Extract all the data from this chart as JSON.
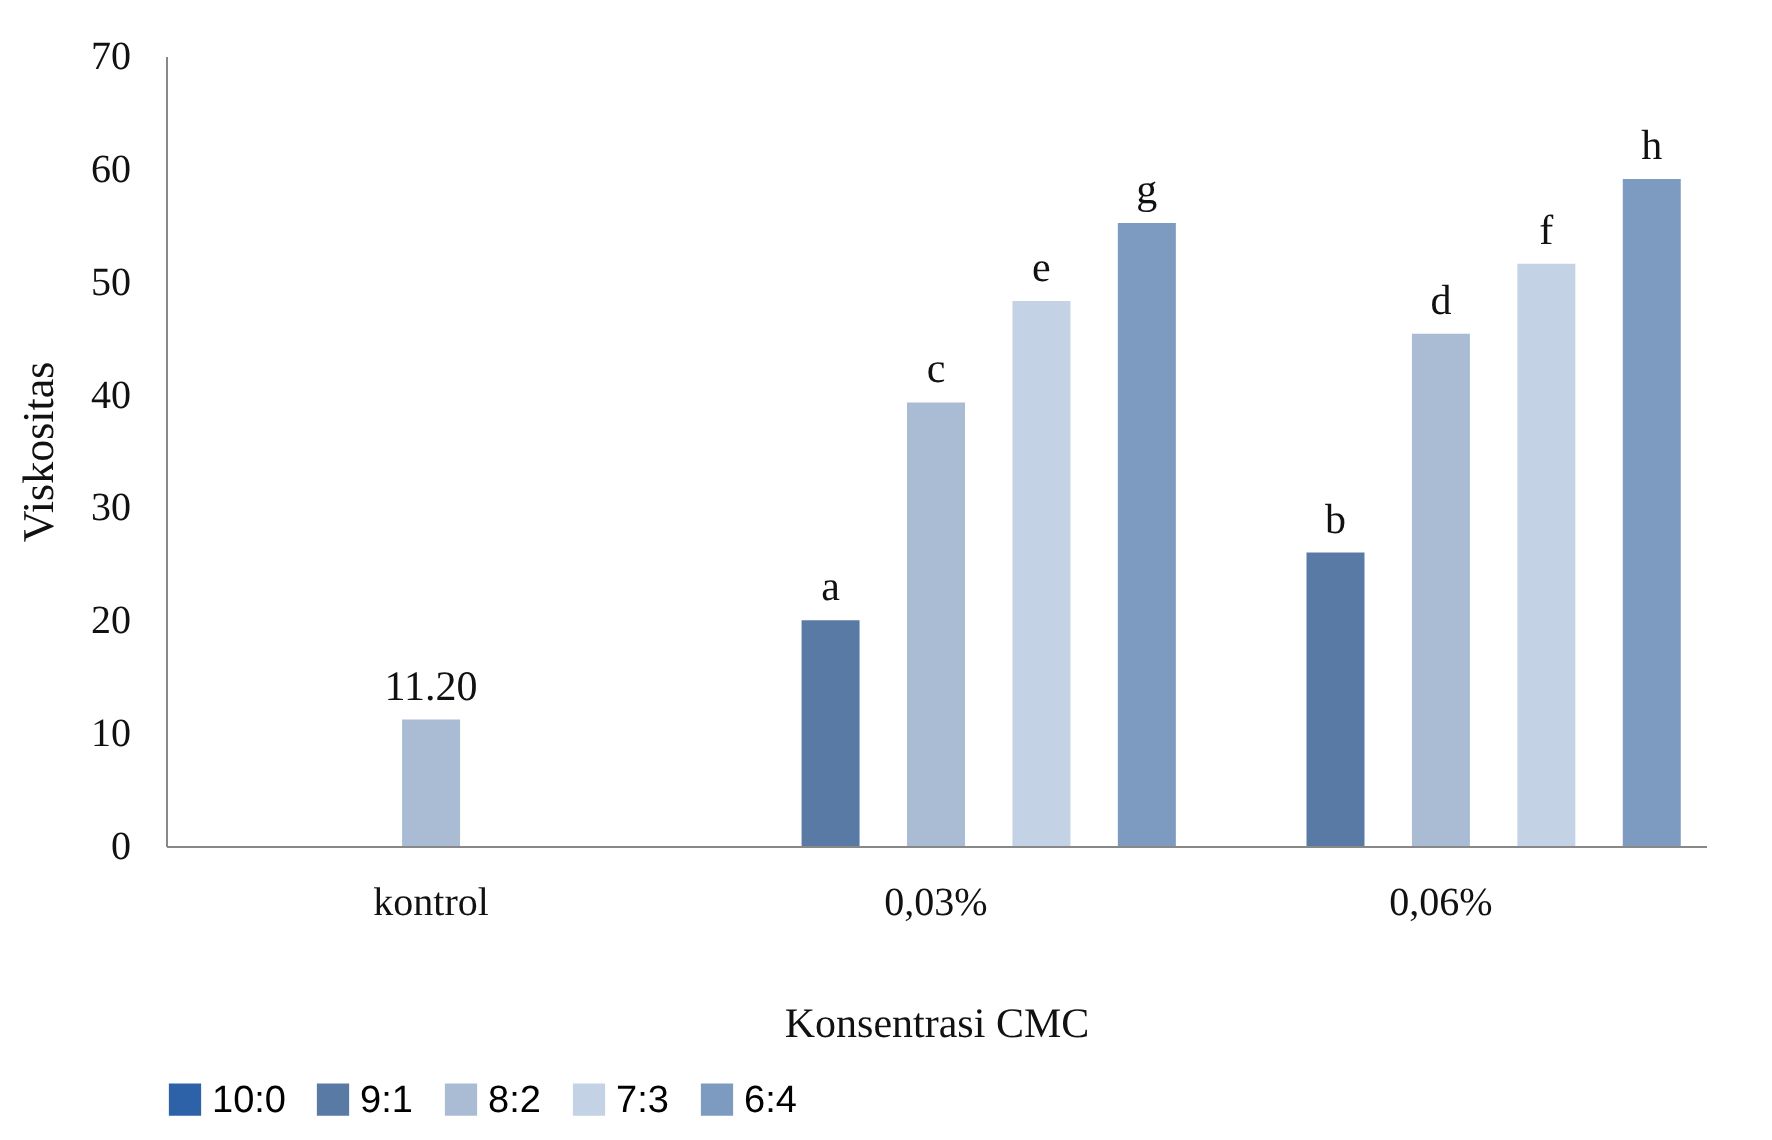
{
  "chart_data": {
    "type": "bar",
    "xlabel": "Konsentrasi CMC",
    "ylabel": "Viskositas",
    "categories": [
      "kontrol",
      "0,03%",
      "0,06%"
    ],
    "series": [
      {
        "name": "10:0",
        "color": "#2e62a8",
        "values": [
          null,
          null,
          null
        ]
      },
      {
        "name": "9:1",
        "color": "#5a7aa6",
        "values": [
          null,
          20,
          26
        ],
        "value_labels": [
          null,
          "a",
          "b"
        ]
      },
      {
        "name": "8:2",
        "color": "#a9bcd4",
        "values": [
          11.2,
          39.3,
          45.4
        ],
        "value_labels": [
          "11.20",
          "c",
          "d"
        ]
      },
      {
        "name": "7:3",
        "color": "#c3d2e5",
        "values": [
          null,
          48.3,
          51.6
        ],
        "value_labels": [
          null,
          "e",
          "f"
        ]
      },
      {
        "name": "6:4",
        "color": "#7d9ac0",
        "values": [
          null,
          55.2,
          59.1
        ],
        "value_labels": [
          null,
          "g",
          "h"
        ]
      }
    ],
    "ylim": [
      0,
      70
    ],
    "yticks": [
      0,
      10,
      20,
      30,
      40,
      50,
      60,
      70
    ],
    "grid": false,
    "legend": "bottom"
  }
}
